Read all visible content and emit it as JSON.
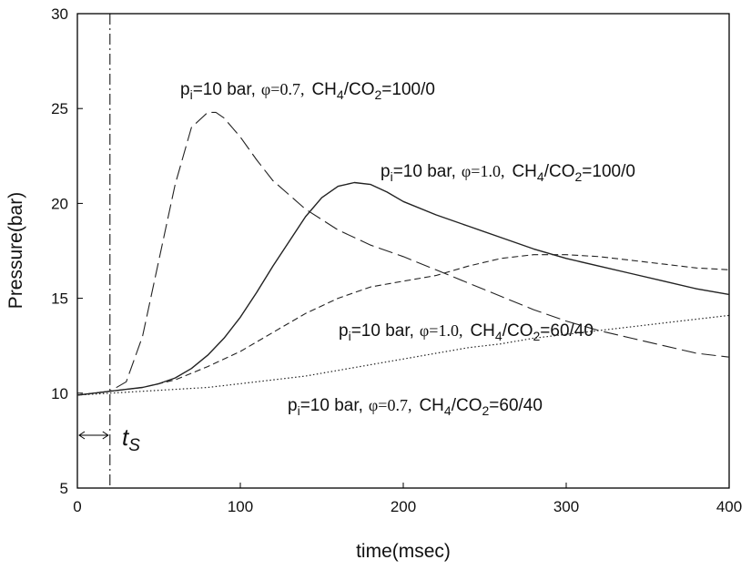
{
  "chart_data": {
    "type": "line",
    "title": "",
    "xlabel": "time(msec)",
    "ylabel": "Pressure(bar)",
    "xlim": [
      0,
      400
    ],
    "ylim": [
      5,
      30
    ],
    "xticks": [
      0,
      100,
      200,
      300,
      400
    ],
    "yticks": [
      5,
      10,
      15,
      20,
      25,
      30
    ],
    "grid": false,
    "spark_time": {
      "label": "t",
      "subscript": "S",
      "value": 20
    },
    "series": [
      {
        "name": "pi=10 bar, φ=0.7, CH4/CO2=100/0",
        "line_style": "long-dash",
        "x": [
          0,
          10,
          20,
          30,
          40,
          50,
          60,
          70,
          80,
          85,
          90,
          100,
          110,
          120,
          140,
          160,
          180,
          200,
          220,
          240,
          260,
          280,
          300,
          320,
          340,
          360,
          380,
          400
        ],
        "y": [
          9.9,
          10.0,
          10.1,
          10.6,
          13.0,
          17.0,
          21.0,
          24.0,
          24.8,
          24.8,
          24.5,
          23.5,
          22.3,
          21.2,
          19.7,
          18.6,
          17.8,
          17.2,
          16.5,
          15.8,
          15.1,
          14.4,
          13.8,
          13.3,
          12.9,
          12.5,
          12.1,
          11.9
        ]
      },
      {
        "name": "pi=10 bar, φ=1.0, CH4/CO2=100/0",
        "line_style": "solid",
        "x": [
          0,
          10,
          20,
          30,
          40,
          50,
          60,
          70,
          80,
          90,
          100,
          110,
          120,
          130,
          140,
          150,
          160,
          170,
          180,
          190,
          200,
          220,
          240,
          260,
          280,
          300,
          320,
          340,
          360,
          380,
          400
        ],
        "y": [
          9.9,
          10.0,
          10.1,
          10.2,
          10.3,
          10.5,
          10.8,
          11.3,
          12.0,
          12.9,
          14.0,
          15.3,
          16.7,
          18.0,
          19.3,
          20.3,
          20.9,
          21.1,
          21.0,
          20.6,
          20.1,
          19.4,
          18.8,
          18.2,
          17.6,
          17.1,
          16.7,
          16.3,
          15.9,
          15.5,
          15.2
        ]
      },
      {
        "name": "pi=10 bar, φ=1.0, CH4/CO2=60/40",
        "line_style": "short-dash",
        "x": [
          0,
          20,
          40,
          60,
          80,
          100,
          120,
          140,
          160,
          180,
          200,
          220,
          240,
          260,
          280,
          300,
          320,
          340,
          360,
          380,
          400
        ],
        "y": [
          9.9,
          10.1,
          10.3,
          10.7,
          11.4,
          12.2,
          13.2,
          14.2,
          15.0,
          15.6,
          15.9,
          16.2,
          16.7,
          17.1,
          17.3,
          17.3,
          17.2,
          17.0,
          16.8,
          16.6,
          16.5
        ]
      },
      {
        "name": "pi=10 bar, φ=0.7, CH4/CO2=60/40",
        "line_style": "dotted",
        "x": [
          0,
          20,
          40,
          60,
          80,
          100,
          120,
          140,
          160,
          180,
          200,
          220,
          240,
          260,
          280,
          300,
          320,
          340,
          360,
          380,
          400
        ],
        "y": [
          9.9,
          10.0,
          10.1,
          10.2,
          10.3,
          10.5,
          10.7,
          10.9,
          11.2,
          11.5,
          11.8,
          12.1,
          12.4,
          12.6,
          12.9,
          13.1,
          13.3,
          13.5,
          13.7,
          13.9,
          14.1
        ]
      }
    ],
    "annotations": [
      {
        "p": "p",
        "p_sub": "i",
        "pressure": "=10 bar,",
        "phi": "φ=0.7,",
        "ch4": "CH",
        "ch4_sub": "4",
        "slash": "/CO",
        "co2_sub": "2",
        "ratio": "=100/0"
      },
      {
        "p": "p",
        "p_sub": "i",
        "pressure": "=10 bar,",
        "phi": "φ=1.0,",
        "ch4": "CH",
        "ch4_sub": "4",
        "slash": "/CO",
        "co2_sub": "2",
        "ratio": "=100/0"
      },
      {
        "p": "p",
        "p_sub": "i",
        "pressure": "=10 bar,",
        "phi": "φ=1.0,",
        "ch4": "CH",
        "ch4_sub": "4",
        "slash": "/CO",
        "co2_sub": "2",
        "ratio": "=60/40"
      },
      {
        "p": "p",
        "p_sub": "i",
        "pressure": "=10 bar,",
        "phi": "φ=0.7,",
        "ch4": "CH",
        "ch4_sub": "4",
        "slash": "/CO",
        "co2_sub": "2",
        "ratio": "=60/40"
      }
    ]
  }
}
